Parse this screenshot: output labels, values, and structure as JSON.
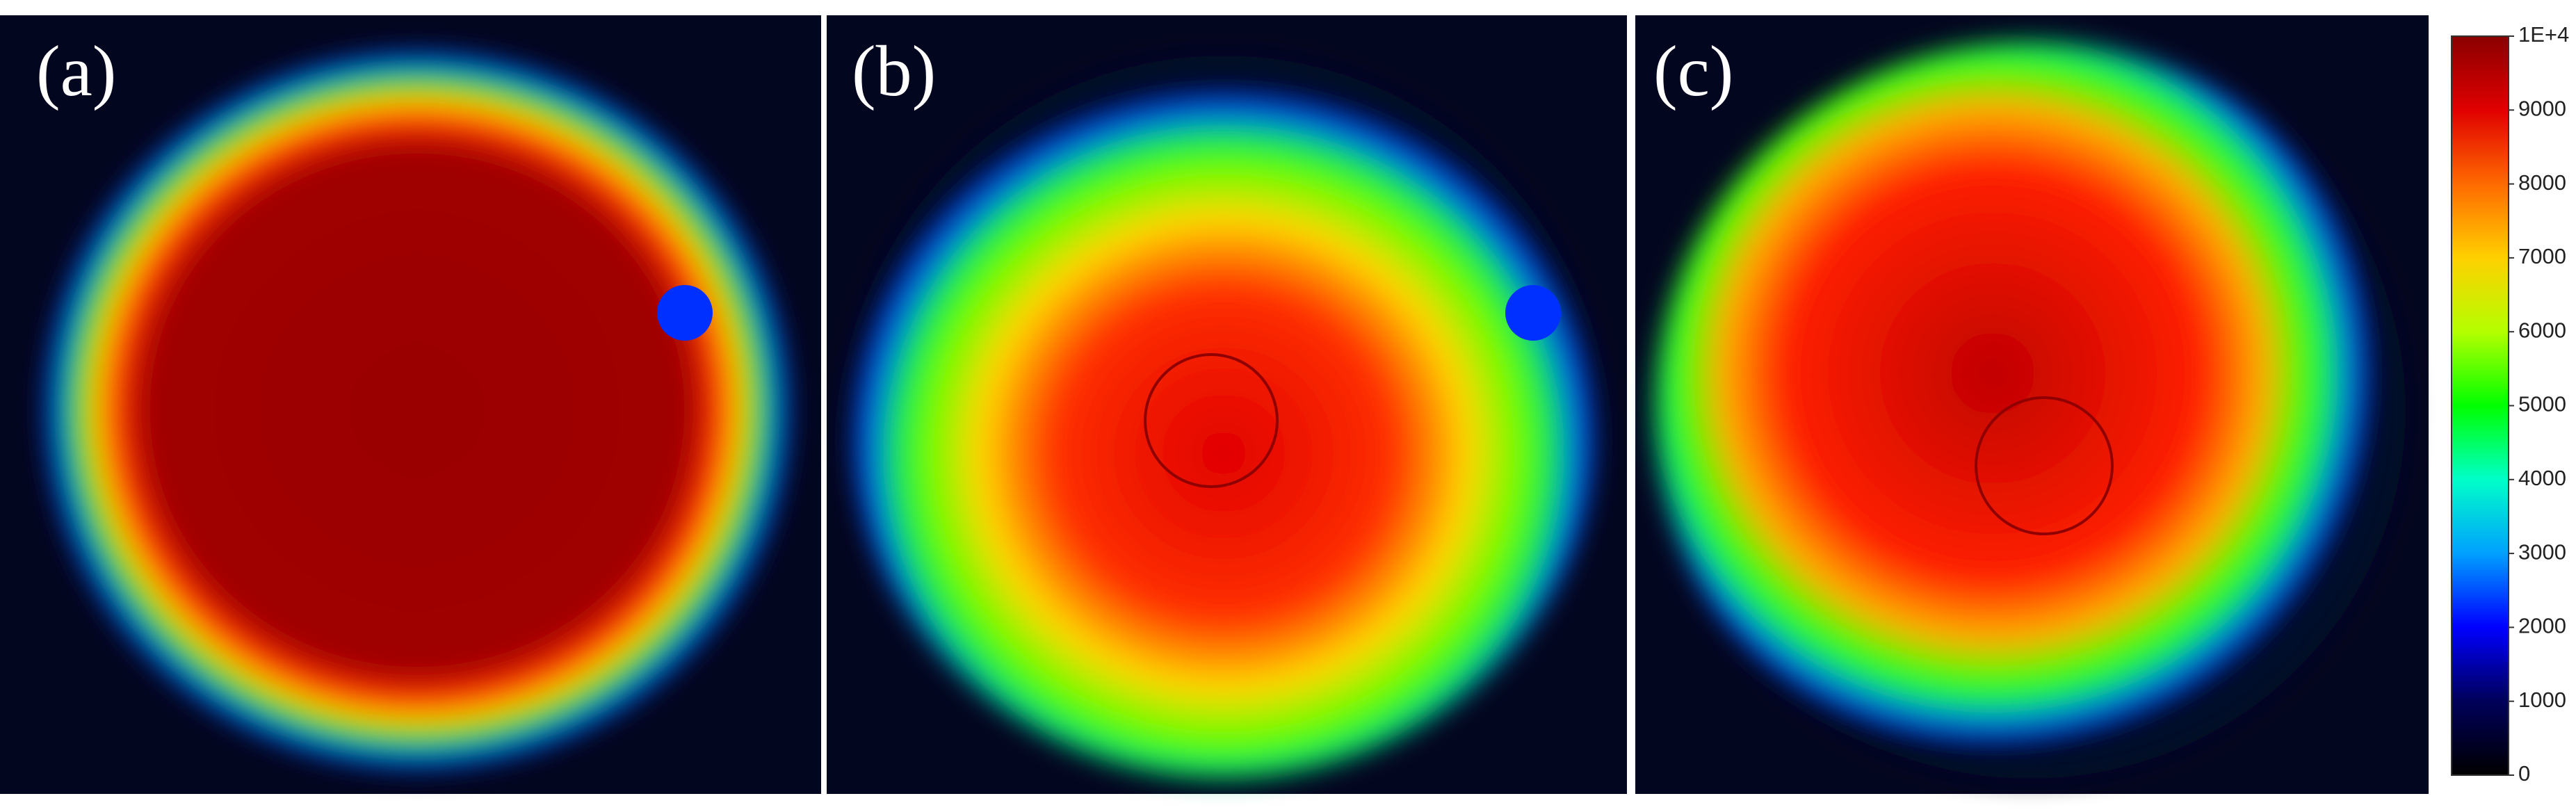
{
  "panels": [
    {
      "label": "(a)"
    },
    {
      "label": "(b)"
    },
    {
      "label": "(c)"
    }
  ],
  "colorbar": {
    "lim": [
      0,
      10000
    ],
    "ticks": [
      0,
      1000,
      2000,
      3000,
      4000,
      5000,
      6000,
      7000,
      8000,
      9000,
      {
        "value": 10000,
        "label": "1E+4"
      }
    ],
    "colors": [
      "#000000",
      "#00005a",
      "#0000ff",
      "#00a0ff",
      "#00ffc8",
      "#00ff00",
      "#b4ff00",
      "#ffd000",
      "#ff6a00",
      "#e00000",
      "#8b0000"
    ]
  }
}
